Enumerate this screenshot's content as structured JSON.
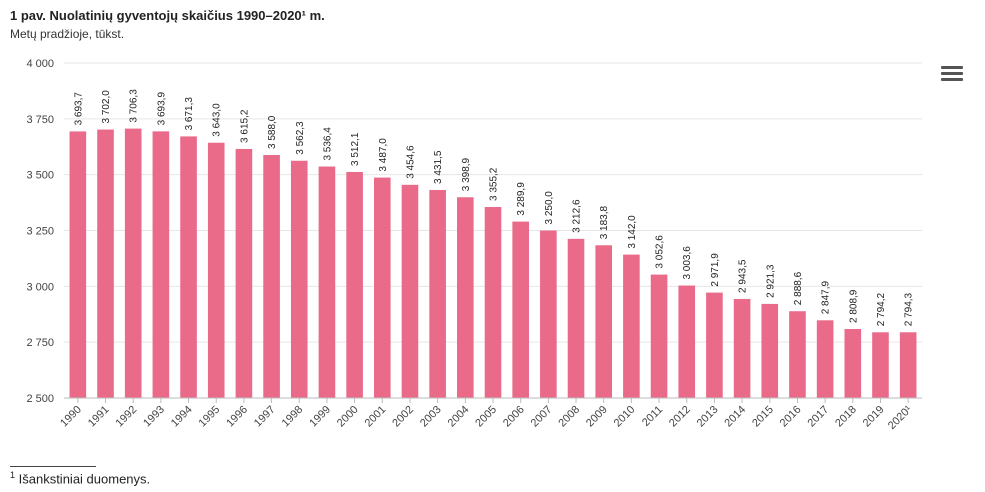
{
  "chart_data": {
    "type": "bar",
    "title": "1 pav. Nuolatinių gyventojų skaičius 1990–2020¹ m.",
    "subtitle": "Metų pradžioje, tūkst.",
    "categories": [
      "1990",
      "1991",
      "1992",
      "1993",
      "1994",
      "1995",
      "1996",
      "1997",
      "1998",
      "1999",
      "2000",
      "2001",
      "2002",
      "2003",
      "2004",
      "2005",
      "2006",
      "2007",
      "2008",
      "2009",
      "2010",
      "2011",
      "2012",
      "2013",
      "2014",
      "2015",
      "2016",
      "2017",
      "2018",
      "2019",
      "2020¹"
    ],
    "values": [
      3693.7,
      3702.0,
      3706.3,
      3693.9,
      3671.3,
      3643.0,
      3615.2,
      3588.0,
      3562.3,
      3536.4,
      3512.1,
      3487.0,
      3454.6,
      3431.5,
      3398.9,
      3355.2,
      3289.9,
      3250.0,
      3212.6,
      3183.8,
      3142.0,
      3052.6,
      3003.6,
      2971.9,
      2943.5,
      2921.3,
      2888.6,
      2847.9,
      2808.9,
      2794.2,
      2794.3
    ],
    "value_labels": [
      "3 693,7",
      "3 702,0",
      "3 706,3",
      "3 693,9",
      "3 671,3",
      "3 643,0",
      "3 615,2",
      "3 588,0",
      "3 562,3",
      "3 536,4",
      "3 512,1",
      "3 487,0",
      "3 454,6",
      "3 431,5",
      "3 398,9",
      "3 355,2",
      "3 289,9",
      "3 250,0",
      "3 212,6",
      "3 183,8",
      "3 142,0",
      "3 052,6",
      "3 003,6",
      "2 971,9",
      "2 943,5",
      "2 921,3",
      "2 888,6",
      "2 847,9",
      "2 808,9",
      "2 794,2",
      "2 794,3"
    ],
    "ylim": [
      2500,
      4000
    ],
    "yticks": [
      2500,
      2750,
      3000,
      3250,
      3500,
      3750,
      4000
    ],
    "ytick_labels": [
      "2 500",
      "2 750",
      "3 000",
      "3 250",
      "3 500",
      "3 750",
      "4 000"
    ],
    "grid": true,
    "bar_color": "#ea6a8a",
    "xlabel": "",
    "ylabel": ""
  },
  "menu": {
    "icon": "hamburger-menu-icon"
  },
  "footnote": {
    "marker": "1",
    "text": " Išankstiniai duomenys."
  }
}
